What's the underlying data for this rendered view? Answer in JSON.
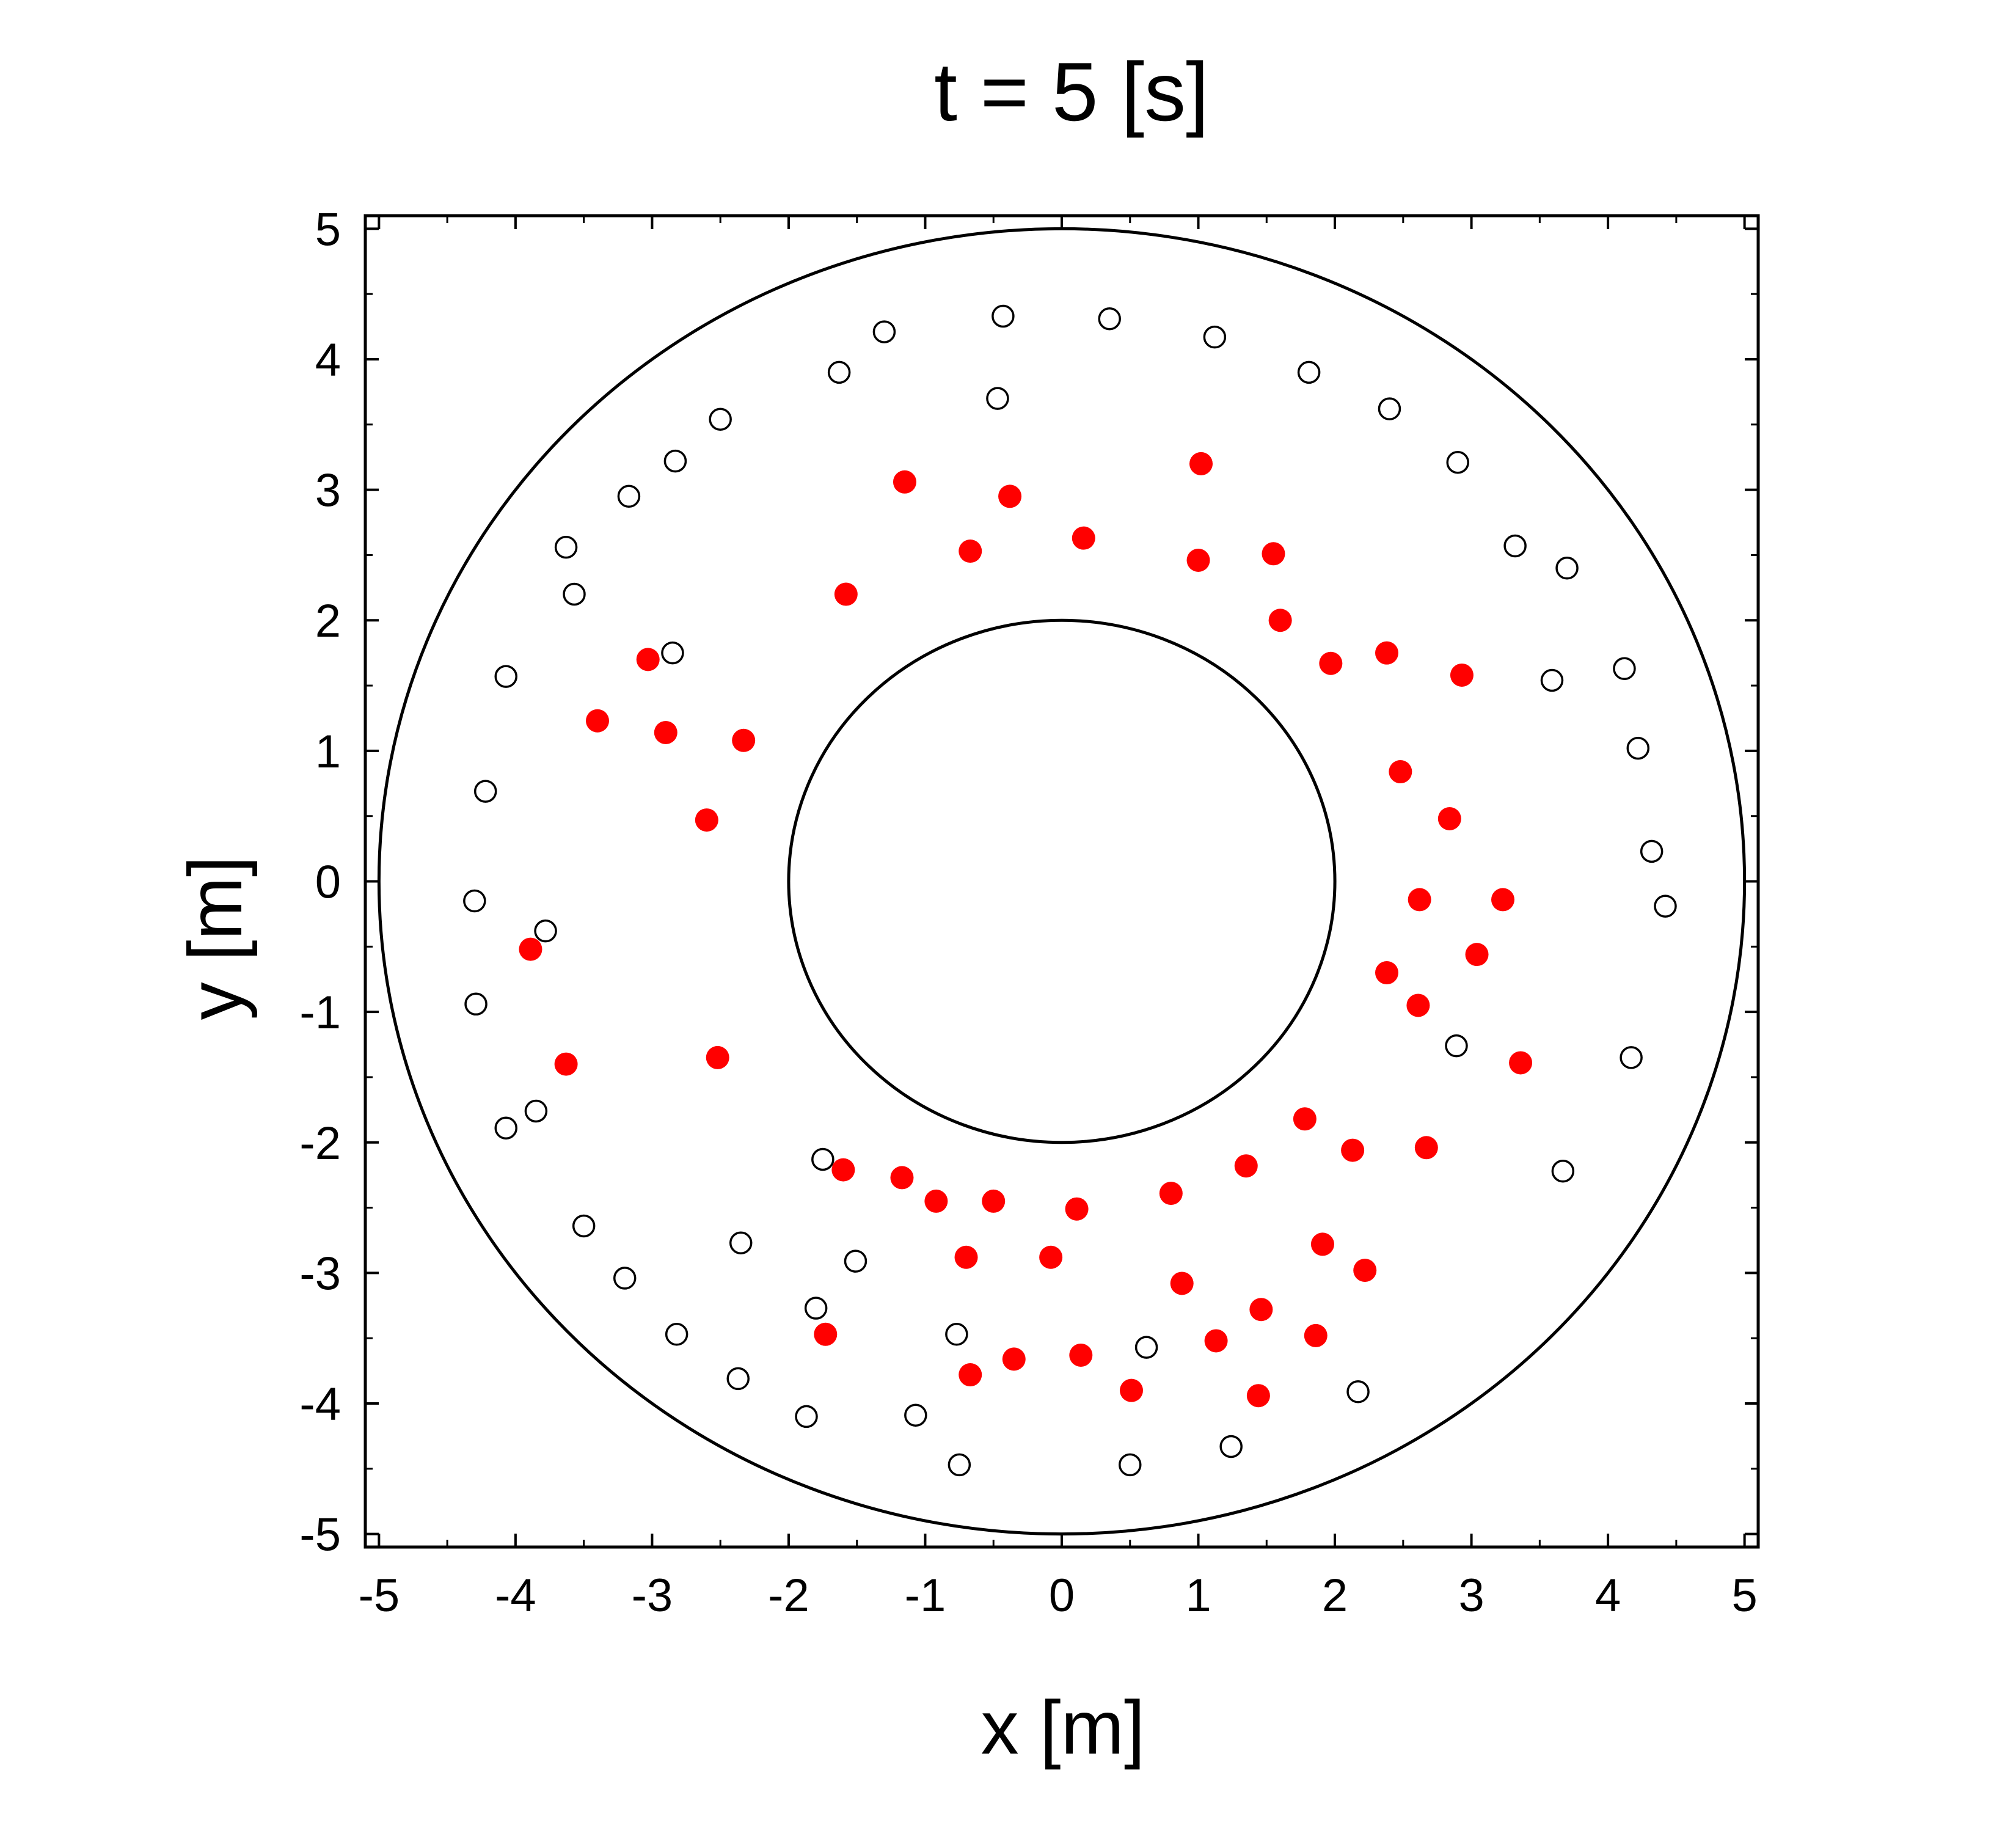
{
  "chart_data": {
    "type": "scatter",
    "title": "t = 5 [s]",
    "xlabel": "x [m]",
    "ylabel": "y [m]",
    "xlim": [
      -5.1,
      5.1
    ],
    "ylim": [
      -5.1,
      5.1
    ],
    "xticks": [
      "-5",
      "-4",
      "-3",
      "-2",
      "-1",
      "0",
      "1",
      "2",
      "3",
      "4",
      "5"
    ],
    "yticks": [
      "-5",
      "-4",
      "-3",
      "-2",
      "-1",
      "0",
      "1",
      "2",
      "3",
      "4",
      "5"
    ],
    "grid": false,
    "boundaries": [
      {
        "name": "outer-circle",
        "center": [
          0,
          0
        ],
        "radius": 5
      },
      {
        "name": "inner-circle",
        "center": [
          0,
          0
        ],
        "radius": 2
      }
    ],
    "series": [
      {
        "marker": "open-circle",
        "color": "#000000",
        "points": [
          [
            -0.43,
            4.33
          ],
          [
            0.35,
            4.31
          ],
          [
            1.12,
            4.17
          ],
          [
            -1.3,
            4.21
          ],
          [
            -1.63,
            3.9
          ],
          [
            -0.47,
            3.7
          ],
          [
            1.81,
            3.9
          ],
          [
            2.4,
            3.62
          ],
          [
            -2.5,
            3.54
          ],
          [
            -2.83,
            3.22
          ],
          [
            2.9,
            3.21
          ],
          [
            -3.17,
            2.95
          ],
          [
            3.32,
            2.57
          ],
          [
            3.7,
            2.4
          ],
          [
            -3.63,
            2.56
          ],
          [
            -3.57,
            2.2
          ],
          [
            -2.85,
            1.75
          ],
          [
            -4.07,
            1.57
          ],
          [
            3.59,
            1.54
          ],
          [
            4.12,
            1.63
          ],
          [
            4.22,
            1.02
          ],
          [
            -4.22,
            0.69
          ],
          [
            4.32,
            0.23
          ],
          [
            -4.3,
            -0.15
          ],
          [
            4.42,
            -0.19
          ],
          [
            -3.78,
            -0.38
          ],
          [
            -4.29,
            -0.94
          ],
          [
            2.89,
            -1.26
          ],
          [
            4.17,
            -1.35
          ],
          [
            -3.85,
            -1.76
          ],
          [
            -4.07,
            -1.89
          ],
          [
            -1.75,
            -2.13
          ],
          [
            3.67,
            -2.22
          ],
          [
            -3.5,
            -2.64
          ],
          [
            -2.35,
            -2.77
          ],
          [
            -1.51,
            -2.91
          ],
          [
            -3.2,
            -3.04
          ],
          [
            -1.8,
            -3.27
          ],
          [
            -2.82,
            -3.47
          ],
          [
            -0.77,
            -3.47
          ],
          [
            0.62,
            -3.57
          ],
          [
            -2.37,
            -3.81
          ],
          [
            2.17,
            -3.91
          ],
          [
            -1.87,
            -4.1
          ],
          [
            -1.07,
            -4.09
          ],
          [
            1.24,
            -4.33
          ],
          [
            -0.75,
            -4.47
          ],
          [
            0.5,
            -4.47
          ]
        ]
      },
      {
        "marker": "filled-circle",
        "color": "#ff0000",
        "points": [
          [
            1.02,
            3.2
          ],
          [
            -1.15,
            3.06
          ],
          [
            -0.38,
            2.95
          ],
          [
            0.16,
            2.63
          ],
          [
            -0.67,
            2.53
          ],
          [
            1.0,
            2.46
          ],
          [
            1.55,
            2.51
          ],
          [
            -1.58,
            2.2
          ],
          [
            1.6,
            2.0
          ],
          [
            1.97,
            1.67
          ],
          [
            2.38,
            1.75
          ],
          [
            2.93,
            1.58
          ],
          [
            -3.03,
            1.7
          ],
          [
            -3.4,
            1.23
          ],
          [
            -2.9,
            1.14
          ],
          [
            -2.33,
            1.08
          ],
          [
            2.48,
            0.84
          ],
          [
            2.84,
            0.48
          ],
          [
            -2.6,
            0.47
          ],
          [
            2.62,
            -0.14
          ],
          [
            3.23,
            -0.14
          ],
          [
            -3.89,
            -0.52
          ],
          [
            3.04,
            -0.56
          ],
          [
            2.38,
            -0.7
          ],
          [
            2.61,
            -0.95
          ],
          [
            -3.63,
            -1.4
          ],
          [
            -2.52,
            -1.35
          ],
          [
            3.36,
            -1.39
          ],
          [
            1.78,
            -1.82
          ],
          [
            2.13,
            -2.06
          ],
          [
            2.67,
            -2.04
          ],
          [
            1.35,
            -2.18
          ],
          [
            -1.6,
            -2.21
          ],
          [
            -1.17,
            -2.27
          ],
          [
            -0.92,
            -2.45
          ],
          [
            -0.5,
            -2.45
          ],
          [
            0.11,
            -2.51
          ],
          [
            0.8,
            -2.39
          ],
          [
            -0.7,
            -2.88
          ],
          [
            -0.08,
            -2.88
          ],
          [
            1.91,
            -2.78
          ],
          [
            2.22,
            -2.98
          ],
          [
            0.88,
            -3.08
          ],
          [
            1.46,
            -3.28
          ],
          [
            1.13,
            -3.52
          ],
          [
            1.86,
            -3.48
          ],
          [
            -1.73,
            -3.47
          ],
          [
            -0.67,
            -3.78
          ],
          [
            -0.35,
            -3.66
          ],
          [
            0.14,
            -3.63
          ],
          [
            0.51,
            -3.9
          ],
          [
            1.44,
            -3.94
          ]
        ]
      }
    ]
  }
}
